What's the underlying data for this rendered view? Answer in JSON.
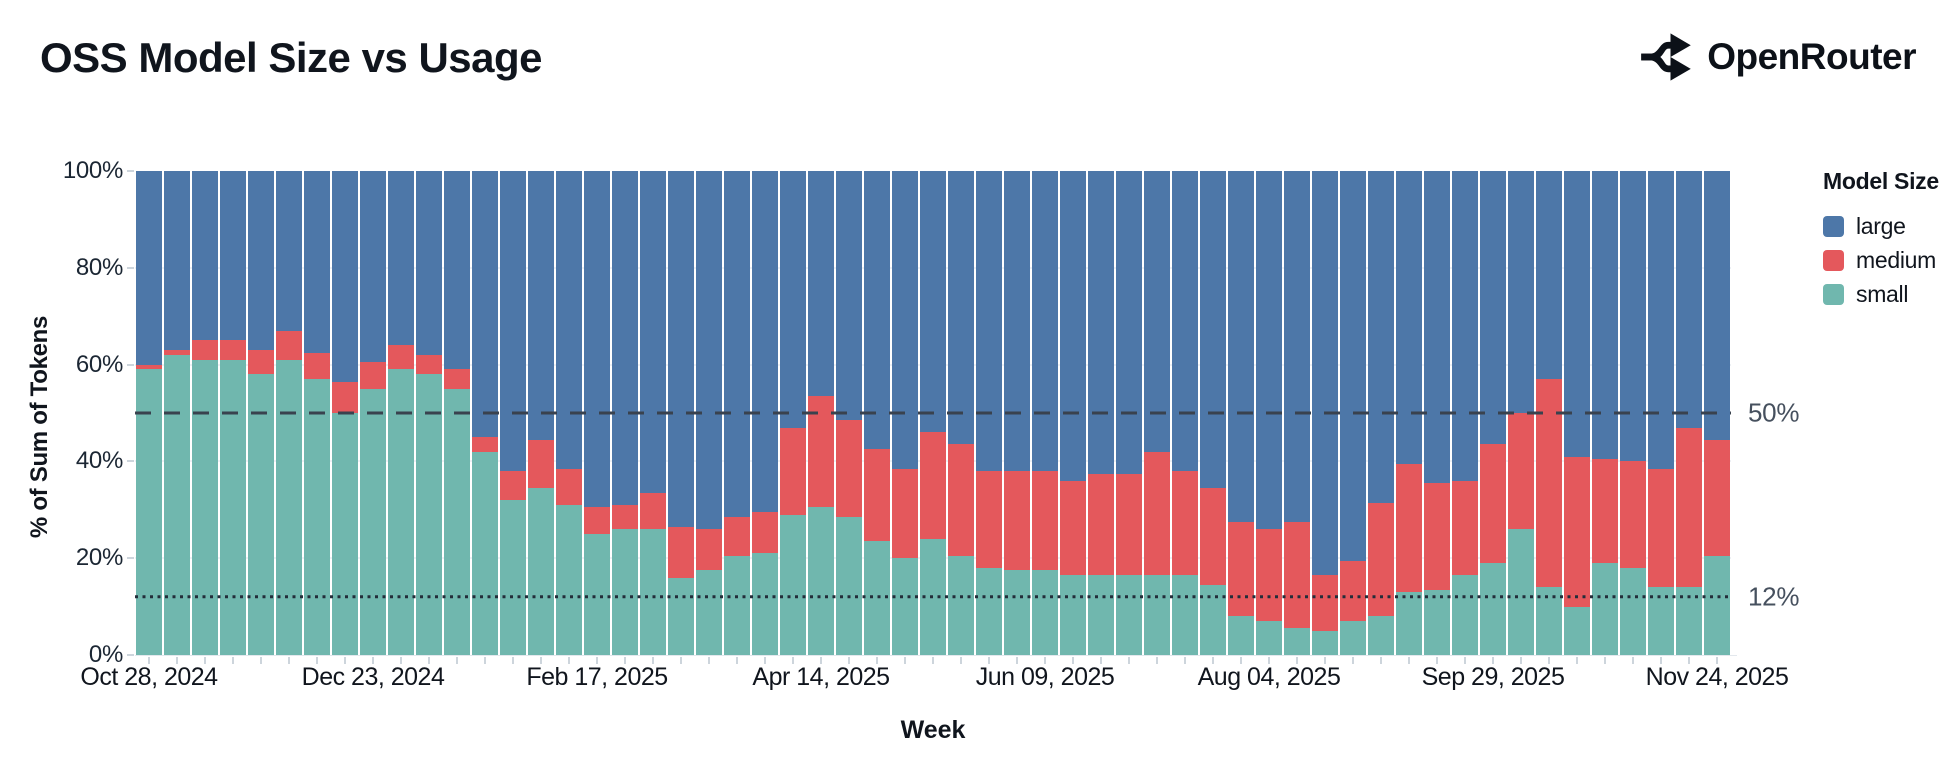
{
  "header": {
    "title": "OSS Model Size vs Usage",
    "brand": "OpenRouter"
  },
  "chart_data": {
    "type": "bar",
    "stacked": true,
    "percent": true,
    "title": "OSS Model Size vs Usage",
    "xlabel": "Week",
    "ylabel": "% of Sum of Tokens",
    "ylim": [
      0,
      100
    ],
    "y_ticks": [
      0,
      20,
      40,
      60,
      80,
      100
    ],
    "y_tick_suffix": "%",
    "grid_values": [
      20,
      40,
      60,
      80
    ],
    "grid": "horizontal-faint",
    "legend": {
      "title": "Model Size",
      "position": "right",
      "entries": [
        {
          "label": "large",
          "color": "#4d77a8"
        },
        {
          "label": "medium",
          "color": "#e4585c"
        },
        {
          "label": "small",
          "color": "#70b7ae"
        }
      ]
    },
    "reference_lines": [
      {
        "value": 50,
        "label": "50%",
        "style": "dashed",
        "color": "#39424e"
      },
      {
        "value": 12,
        "label": "12%",
        "style": "dotted",
        "color": "#232d3a"
      }
    ],
    "x_tick_labels": [
      "Oct 28, 2024",
      "Dec 23, 2024",
      "Feb 17, 2025",
      "Apr 14, 2025",
      "Jun 09, 2025",
      "Aug 04, 2025",
      "Sep 29, 2025",
      "Nov 24, 2025"
    ],
    "x_tick_indices": [
      0,
      8,
      16,
      24,
      32,
      40,
      48,
      56
    ],
    "weeks": [
      "2024-10-28",
      "2024-11-04",
      "2024-11-11",
      "2024-11-18",
      "2024-11-25",
      "2024-12-02",
      "2024-12-09",
      "2024-12-16",
      "2024-12-23",
      "2024-12-30",
      "2025-01-06",
      "2025-01-13",
      "2025-01-20",
      "2025-01-27",
      "2025-02-03",
      "2025-02-10",
      "2025-02-17",
      "2025-02-24",
      "2025-03-03",
      "2025-03-10",
      "2025-03-17",
      "2025-03-24",
      "2025-03-31",
      "2025-04-07",
      "2025-04-14",
      "2025-04-21",
      "2025-04-28",
      "2025-05-05",
      "2025-05-12",
      "2025-05-19",
      "2025-05-26",
      "2025-06-02",
      "2025-06-09",
      "2025-06-16",
      "2025-06-23",
      "2025-06-30",
      "2025-07-07",
      "2025-07-14",
      "2025-07-21",
      "2025-07-28",
      "2025-08-04",
      "2025-08-11",
      "2025-08-18",
      "2025-08-25",
      "2025-09-01",
      "2025-09-08",
      "2025-09-15",
      "2025-09-22",
      "2025-09-29",
      "2025-10-06",
      "2025-10-13",
      "2025-10-20",
      "2025-10-27",
      "2025-11-03",
      "2025-11-10",
      "2025-11-17",
      "2025-11-24"
    ],
    "series": [
      {
        "name": "small",
        "color": "#70b7ae",
        "values": [
          59,
          62,
          61,
          61,
          58,
          61,
          57,
          50,
          55,
          59,
          58,
          55,
          42,
          32,
          34.5,
          31,
          25,
          26,
          26,
          16,
          17.5,
          20.5,
          21,
          29,
          30.5,
          28.5,
          23.5,
          20,
          24,
          20.5,
          18,
          17.5,
          17.5,
          16.5,
          16.5,
          16.5,
          16.5,
          16.5,
          14.5,
          8,
          7,
          5.5,
          5,
          7,
          8,
          13,
          13.5,
          16.5,
          19,
          26,
          14,
          10,
          19,
          18,
          14,
          14,
          20.5
        ]
      },
      {
        "name": "medium",
        "color": "#e4585c",
        "values": [
          1,
          1,
          4,
          4,
          5,
          6,
          5.5,
          6.5,
          5.5,
          5,
          4,
          4,
          3,
          6,
          10,
          7.5,
          5.5,
          5,
          7.5,
          10.5,
          8.5,
          8,
          8.5,
          18,
          23,
          20,
          19,
          18.5,
          22,
          23,
          20,
          20.5,
          20.5,
          19.5,
          21,
          21,
          25.5,
          21.5,
          20,
          19.5,
          19,
          22,
          11.5,
          12.5,
          23.5,
          26.5,
          22,
          19.5,
          24.5,
          24,
          43,
          31,
          21.5,
          22,
          24.5,
          33,
          24
        ]
      },
      {
        "name": "large",
        "color": "#4d77a8",
        "values": [
          40,
          37,
          35,
          35,
          37,
          33,
          37.5,
          43.5,
          39.5,
          36,
          38,
          41,
          55,
          62,
          55.5,
          61.5,
          69.5,
          69,
          66.5,
          73.5,
          74,
          71.5,
          70.5,
          53,
          46.5,
          51.5,
          57.5,
          61.5,
          54,
          56.5,
          62,
          62,
          62,
          64,
          62.5,
          62.5,
          58,
          62,
          65.5,
          72.5,
          74,
          72.5,
          83.5,
          80.5,
          68.5,
          60.5,
          64.5,
          64,
          56.5,
          50,
          43,
          59,
          59.5,
          60,
          61.5,
          53,
          55.5
        ]
      }
    ]
  }
}
